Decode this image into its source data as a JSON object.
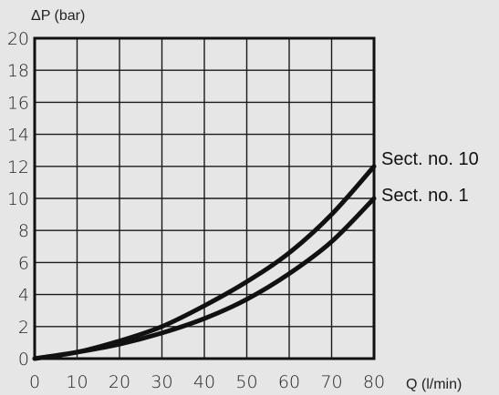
{
  "chart_data": {
    "type": "line",
    "ylabel": "ΔP (bar)",
    "xlabel": "Q (l/min)",
    "xlim": [
      0,
      80
    ],
    "ylim": [
      0,
      20
    ],
    "x_ticks": [
      "0",
      "10",
      "20",
      "30",
      "40",
      "50",
      "60",
      "70",
      "80"
    ],
    "y_ticks": [
      "0",
      "2",
      "4",
      "6",
      "8",
      "10",
      "12",
      "14",
      "16",
      "18",
      "20"
    ],
    "grid": true,
    "x": [
      0,
      10,
      20,
      30,
      40,
      50,
      60,
      70,
      80
    ],
    "series": [
      {
        "name": "Sect. no. 10",
        "values": [
          0,
          0.4,
          1.1,
          2.0,
          3.3,
          4.8,
          6.6,
          9.0,
          12.0
        ]
      },
      {
        "name": "Sect. no. 1",
        "values": [
          0,
          0.4,
          0.9,
          1.6,
          2.5,
          3.7,
          5.3,
          7.3,
          10.0
        ]
      }
    ]
  }
}
